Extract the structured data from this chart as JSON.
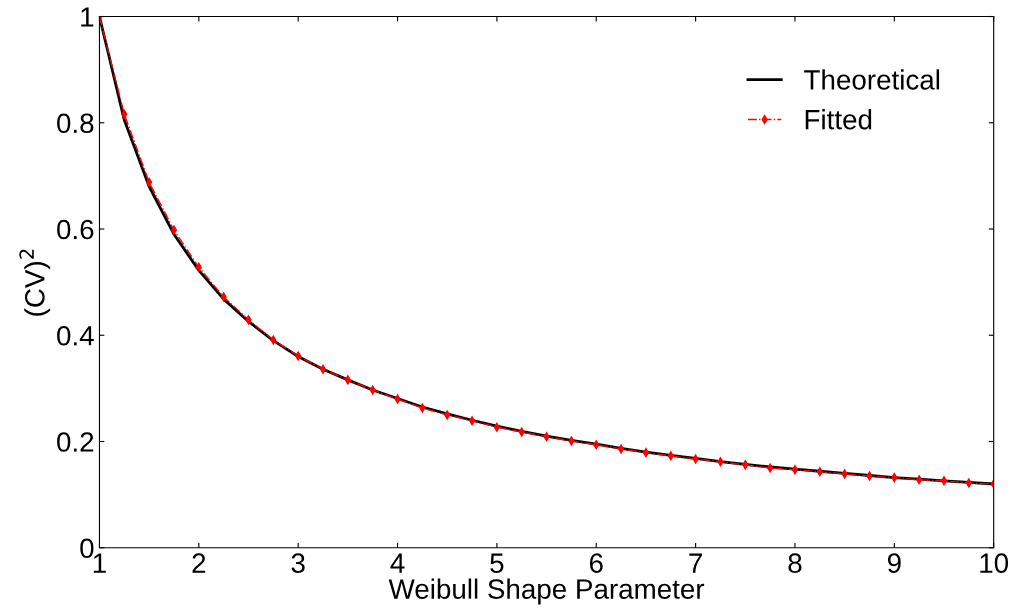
{
  "chart_data": {
    "type": "line",
    "xlabel": "Weibull Shape Parameter",
    "ylabel": "(CV)$^{2}$",
    "x": [
      1,
      1.25,
      1.5,
      1.75,
      2,
      2.25,
      2.5,
      2.75,
      3,
      3.25,
      3.5,
      3.75,
      4,
      4.25,
      4.5,
      4.75,
      5,
      5.25,
      5.5,
      5.75,
      6,
      6.25,
      6.5,
      6.75,
      7,
      7.25,
      7.5,
      7.75,
      8,
      8.25,
      8.5,
      8.75,
      9,
      9.25,
      9.5,
      9.75,
      10
    ],
    "series": [
      {
        "name": "Theoretical",
        "color": "#000000",
        "line_style": "solid",
        "marker": "none",
        "values": [
          1.0,
          0.805,
          0.68,
          0.59,
          0.522,
          0.468,
          0.426,
          0.39,
          0.36,
          0.336,
          0.316,
          0.297,
          0.281,
          0.265,
          0.252,
          0.24,
          0.229,
          0.219,
          0.21,
          0.202,
          0.195,
          0.187,
          0.18,
          0.174,
          0.168,
          0.162,
          0.157,
          0.152,
          0.148,
          0.144,
          0.14,
          0.136,
          0.132,
          0.129,
          0.126,
          0.123,
          0.12
        ]
      },
      {
        "name": "Fitted",
        "color": "#ff0000",
        "line_style": "dashed",
        "marker": "diamond",
        "values": [
          1.0,
          0.816,
          0.688,
          0.598,
          0.528,
          0.472,
          0.429,
          0.391,
          0.361,
          0.336,
          0.316,
          0.297,
          0.28,
          0.263,
          0.25,
          0.239,
          0.227,
          0.218,
          0.209,
          0.201,
          0.194,
          0.186,
          0.179,
          0.173,
          0.167,
          0.162,
          0.156,
          0.15,
          0.147,
          0.143,
          0.139,
          0.135,
          0.132,
          0.128,
          0.126,
          0.122,
          0.12
        ]
      }
    ],
    "xlim": [
      1,
      10
    ],
    "xticks": [
      1,
      2,
      3,
      4,
      5,
      6,
      7,
      8,
      9,
      10
    ],
    "ylim": [
      0,
      1
    ],
    "yticks": [
      0,
      0.2,
      0.4,
      0.6,
      0.8,
      1
    ],
    "grid": false,
    "legend": "top right"
  }
}
